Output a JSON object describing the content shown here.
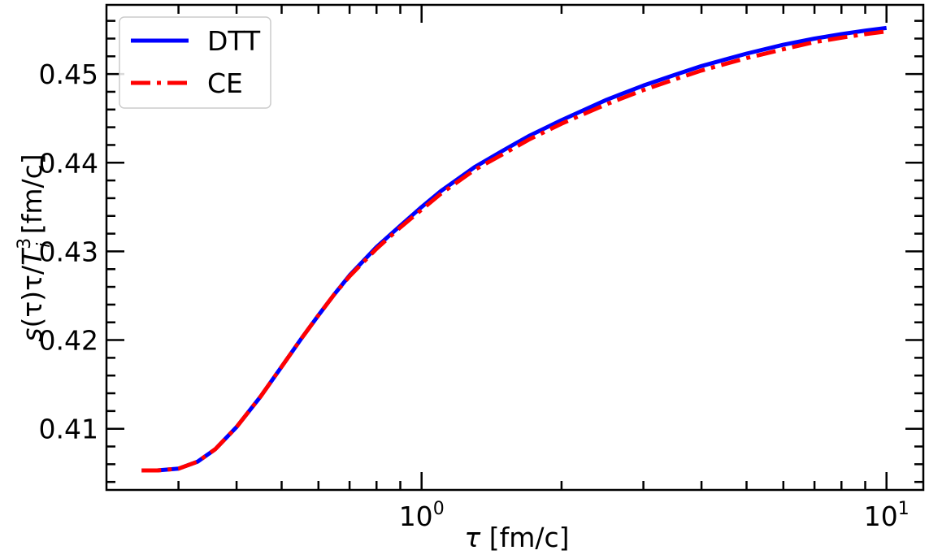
{
  "chart_data": {
    "type": "line",
    "xlabel_symbol": "τ",
    "xlabel_unit": " [fm/c]",
    "ylabel_parts": {
      "s": "s",
      "arg": "(τ)τ/",
      "T": "T",
      "sub": "i",
      "sup": "3",
      "unit": " [fm/c]"
    },
    "x_scale": "log",
    "xlim": [
      0.21,
      12
    ],
    "ylim": [
      0.4031,
      0.4578
    ],
    "x_major_ticks": [
      {
        "value": 1,
        "base": "10",
        "exp": "0"
      },
      {
        "value": 10,
        "base": "10",
        "exp": "1"
      }
    ],
    "y_ticks": [
      {
        "value": 0.41,
        "label": "0.41"
      },
      {
        "value": 0.42,
        "label": "0.42"
      },
      {
        "value": 0.43,
        "label": "0.43"
      },
      {
        "value": 0.44,
        "label": "0.44"
      },
      {
        "value": 0.45,
        "label": "0.45"
      }
    ],
    "legend_position": "top-left",
    "grid": false,
    "series": [
      {
        "name": "DTT",
        "color": "#0000ff",
        "style": "solid",
        "x": [
          0.25,
          0.27,
          0.3,
          0.33,
          0.36,
          0.4,
          0.45,
          0.5,
          0.55,
          0.6,
          0.65,
          0.7,
          0.8,
          0.9,
          1.0,
          1.1,
          1.3,
          1.5,
          1.7,
          2.0,
          2.5,
          3.0,
          3.5,
          4.0,
          5.0,
          6.0,
          7.0,
          8.0,
          9.0,
          10.0
        ],
        "y": [
          0.4053,
          0.4053,
          0.4055,
          0.4063,
          0.4077,
          0.4102,
          0.4136,
          0.417,
          0.4201,
          0.4228,
          0.4252,
          0.4273,
          0.4305,
          0.4329,
          0.435,
          0.4368,
          0.4395,
          0.4414,
          0.443,
          0.4448,
          0.4471,
          0.4487,
          0.4499,
          0.4509,
          0.4523,
          0.4533,
          0.454,
          0.4545,
          0.4549,
          0.4552
        ]
      },
      {
        "name": "CE",
        "color": "#ff0000",
        "style": "dashdot",
        "x": [
          0.25,
          0.27,
          0.3,
          0.33,
          0.36,
          0.4,
          0.45,
          0.5,
          0.55,
          0.6,
          0.65,
          0.7,
          0.8,
          0.9,
          1.0,
          1.1,
          1.3,
          1.5,
          1.7,
          2.0,
          2.5,
          3.0,
          3.5,
          4.0,
          5.0,
          6.0,
          7.0,
          8.0,
          9.0,
          10.0
        ],
        "y": [
          0.4053,
          0.4053,
          0.4055,
          0.4063,
          0.4077,
          0.4102,
          0.4136,
          0.417,
          0.4201,
          0.4228,
          0.4252,
          0.4272,
          0.4303,
          0.4327,
          0.4347,
          0.4365,
          0.4392,
          0.441,
          0.4426,
          0.4444,
          0.4466,
          0.4482,
          0.4494,
          0.4504,
          0.4518,
          0.4528,
          0.4536,
          0.4541,
          0.4545,
          0.4548
        ]
      }
    ]
  }
}
